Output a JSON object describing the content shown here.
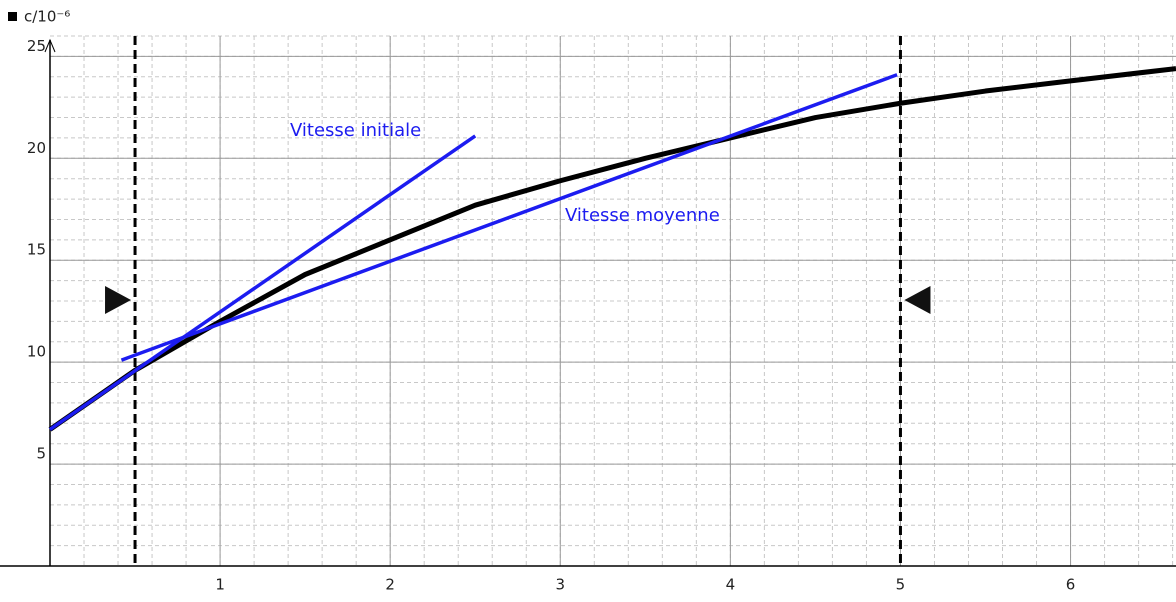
{
  "chart_data": {
    "type": "line",
    "y_label": "c/10⁻⁶",
    "xlim": [
      0,
      6.62
    ],
    "ylim": [
      0,
      26
    ],
    "xticks": [
      1,
      2,
      3,
      4,
      5,
      6
    ],
    "yticks": [
      5,
      10,
      15,
      20,
      25
    ],
    "grid": true,
    "cursors": [
      0.5,
      5
    ],
    "series": [
      {
        "color": "#000000",
        "x": [
          0,
          0.5,
          1,
          1.5,
          2,
          2.5,
          3,
          3.5,
          4,
          4.5,
          5,
          5.5,
          6,
          6.62
        ],
        "values": [
          6.7,
          9.6,
          12.0,
          14.3,
          16.0,
          17.7,
          18.9,
          20.0,
          21.0,
          22.0,
          22.7,
          23.3,
          23.8,
          24.4
        ]
      },
      {
        "color": "#1c1cf0",
        "x": [
          0,
          2.5
        ],
        "values": [
          6.7,
          21.1
        ]
      },
      {
        "color": "#1c1cf0",
        "x": [
          0.42,
          4.98
        ],
        "values": [
          10.1,
          24.1
        ]
      }
    ],
    "annotations": [
      "Vitesse initiale",
      "Vitesse moyenne"
    ]
  }
}
